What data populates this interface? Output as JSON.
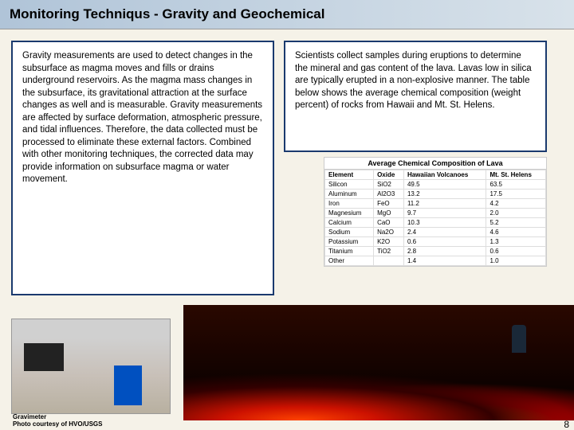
{
  "header": {
    "title": "Monitoring Techniqus - Gravity and Geochemical"
  },
  "left": {
    "text": "Gravity measurements are used to detect changes in the subsurface as magma moves and fills or drains underground reservoirs.  As the magma mass changes in the subsurface, its gravitational attraction at the surface changes as well and is measurable.  Gravity measurements are affected by surface deformation, atmospheric pressure, and tidal influences.  Therefore, the data collected must be processed to eliminate these external factors.  Combined with other monitoring techniques, the corrected data may provide information on subsurface magma or water movement."
  },
  "right": {
    "text": "Scientists collect samples during eruptions to determine the mineral and gas content of the lava.  Lavas low in silica are typically erupted in a non-explosive manner.  The table below shows the average chemical composition (weight percent) of rocks from Hawaii and Mt. St. Helens."
  },
  "table": {
    "title": "Average Chemical Composition of Lava",
    "headers": [
      "Element",
      "Oxide",
      "Hawaiian Volcanoes",
      "Mt. St. Helens"
    ],
    "rows": [
      [
        "Silicon",
        "SiO2",
        "49.5",
        "63.5"
      ],
      [
        "Aluminum",
        "Al2O3",
        "13.2",
        "17.5"
      ],
      [
        "Iron",
        "FeO",
        "11.2",
        "4.2"
      ],
      [
        "Magnesium",
        "MgO",
        "9.7",
        "2.0"
      ],
      [
        "Calcium",
        "CaO",
        "10.3",
        "5.2"
      ],
      [
        "Sodium",
        "Na2O",
        "2.4",
        "4.6"
      ],
      [
        "Potassium",
        "K2O",
        "0.6",
        "1.3"
      ],
      [
        "Titanium",
        "TiO2",
        "2.8",
        "0.6"
      ],
      [
        "Other",
        "",
        "1.4",
        "1.0"
      ]
    ]
  },
  "caption": {
    "line1": "Gravimeter",
    "line2": "Photo courtesy of HVO/USGS"
  },
  "page": "8"
}
